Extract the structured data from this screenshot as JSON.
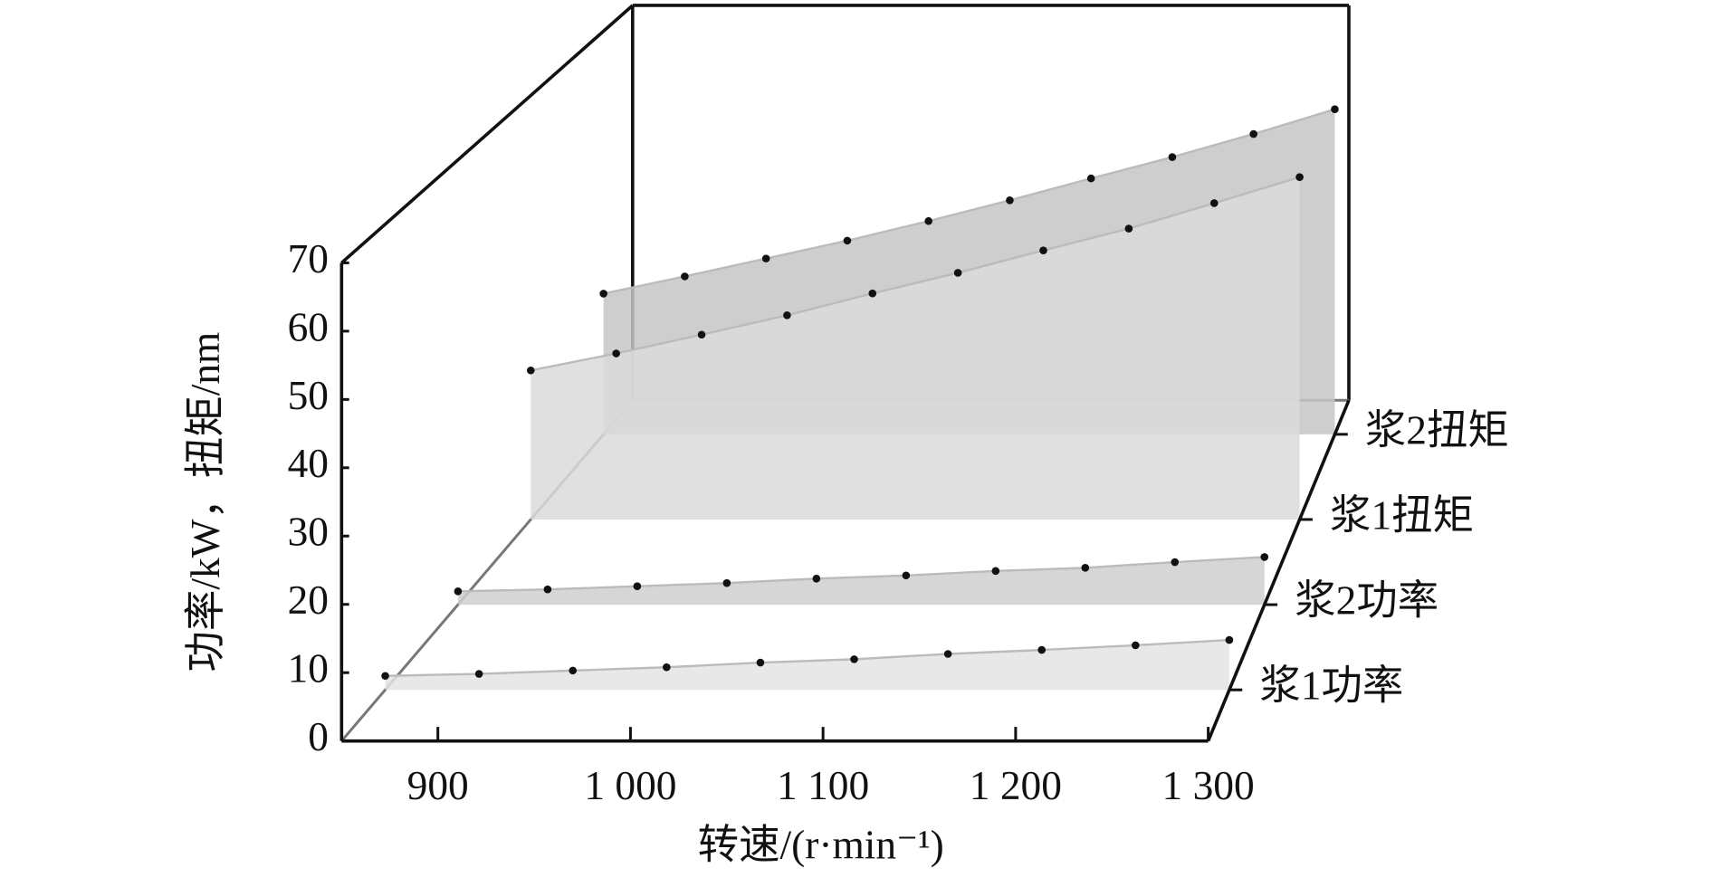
{
  "chart_data": {
    "type": "area3d",
    "x_label": "转速/(r·min⁻¹)",
    "y_label": "功率/kW，扭矩/nm",
    "x": [
      850,
      900,
      950,
      1000,
      1050,
      1100,
      1150,
      1200,
      1250,
      1300
    ],
    "xlim": [
      850,
      1300
    ],
    "xticks": [
      900,
      {
        "value": 1000,
        "label": "1 000"
      },
      {
        "value": 1100,
        "label": "1 100"
      },
      {
        "value": 1200,
        "label": "1 200"
      },
      {
        "value": 1300,
        "label": "1 300"
      }
    ],
    "ylim": [
      0,
      70
    ],
    "yticks": [
      0,
      10,
      20,
      30,
      40,
      50,
      60,
      70
    ],
    "series": [
      {
        "name": "浆1功率",
        "color": "#e4e4e4",
        "values": [
          2.1,
          2.4,
          2.9,
          3.4,
          4.1,
          4.6,
          5.4,
          6.0,
          6.7,
          7.5
        ]
      },
      {
        "name": "浆2功率",
        "color": "#cfcfcf",
        "values": [
          2.1,
          2.4,
          2.9,
          3.4,
          4.1,
          4.6,
          5.3,
          5.8,
          6.7,
          7.5
        ]
      },
      {
        "name": "浆1扭矩",
        "color": "#dadada",
        "values": [
          24.6,
          27.4,
          30.5,
          33.7,
          37.3,
          40.7,
          44.4,
          48.0,
          52.2,
          56.5
        ]
      },
      {
        "name": "浆2扭矩",
        "color": "#c6c6c6",
        "values": [
          24.4,
          27.4,
          30.5,
          33.6,
          37.0,
          40.6,
          44.4,
          48.1,
          52.1,
          56.4
        ]
      }
    ]
  }
}
